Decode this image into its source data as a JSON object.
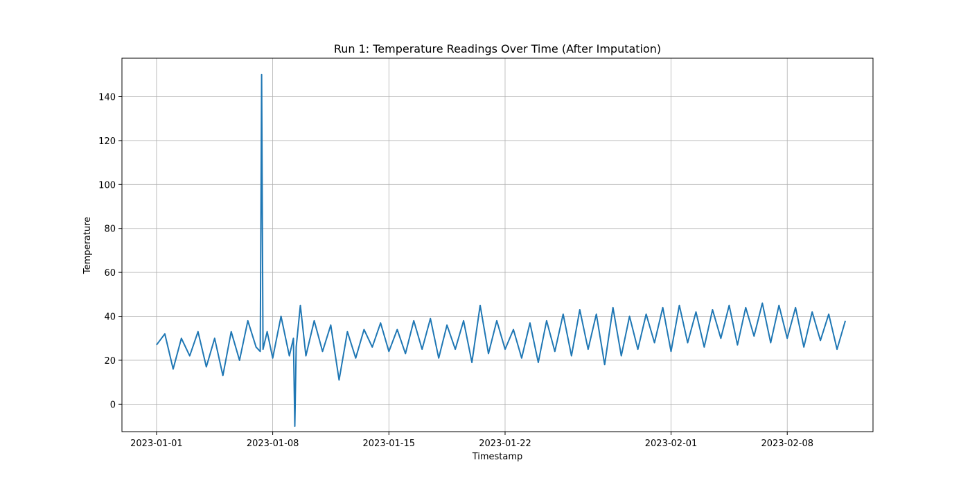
{
  "chart_data": {
    "type": "line",
    "title": "Run 1: Temperature Readings Over Time (After Imputation)",
    "xlabel": "Timestamp",
    "ylabel": "Temperature",
    "xlim": [
      "2022-12-29T22:00",
      "2023-02-13T04:00"
    ],
    "ylim": [
      -12.5,
      157.5
    ],
    "xticks": [
      "2023-01-01",
      "2023-01-08",
      "2023-01-15",
      "2023-01-22",
      "2023-02-01",
      "2023-02-08"
    ],
    "yticks": [
      0,
      20,
      40,
      60,
      80,
      100,
      120,
      140
    ],
    "grid": true,
    "line_color": "#1f77b4",
    "series": [
      {
        "x": [
          "2023-01-01T00:00",
          "2023-01-01T12:00",
          "2023-01-02T00:00",
          "2023-01-02T12:00",
          "2023-01-03T00:00",
          "2023-01-03T12:00",
          "2023-01-04T00:00",
          "2023-01-04T12:00",
          "2023-01-05T00:00",
          "2023-01-05T12:00",
          "2023-01-06T00:00",
          "2023-01-06T12:00",
          "2023-01-07T00:00",
          "2023-01-07T06:00",
          "2023-01-07T08:00",
          "2023-01-07T10:00",
          "2023-01-07T16:00",
          "2023-01-08T00:00",
          "2023-01-08T12:00",
          "2023-01-09T00:00",
          "2023-01-09T06:00",
          "2023-01-09T08:00",
          "2023-01-09T10:00",
          "2023-01-09T16:00",
          "2023-01-10T00:00",
          "2023-01-10T12:00",
          "2023-01-11T00:00",
          "2023-01-11T12:00",
          "2023-01-12T00:00",
          "2023-01-12T12:00",
          "2023-01-13T00:00",
          "2023-01-13T12:00",
          "2023-01-14T00:00",
          "2023-01-14T12:00",
          "2023-01-15T00:00",
          "2023-01-15T12:00",
          "2023-01-16T00:00",
          "2023-01-16T12:00",
          "2023-01-17T00:00",
          "2023-01-17T12:00",
          "2023-01-18T00:00",
          "2023-01-18T12:00",
          "2023-01-19T00:00",
          "2023-01-19T12:00",
          "2023-01-20T00:00",
          "2023-01-20T12:00",
          "2023-01-21T00:00",
          "2023-01-21T12:00",
          "2023-01-22T00:00",
          "2023-01-22T12:00",
          "2023-01-23T00:00",
          "2023-01-23T12:00",
          "2023-01-24T00:00",
          "2023-01-24T12:00",
          "2023-01-25T00:00",
          "2023-01-25T12:00",
          "2023-01-26T00:00",
          "2023-01-26T12:00",
          "2023-01-27T00:00",
          "2023-01-27T12:00",
          "2023-01-28T00:00",
          "2023-01-28T12:00",
          "2023-01-29T00:00",
          "2023-01-29T12:00",
          "2023-01-30T00:00",
          "2023-01-30T12:00",
          "2023-01-31T00:00",
          "2023-01-31T12:00",
          "2023-02-01T00:00",
          "2023-02-01T12:00",
          "2023-02-02T00:00",
          "2023-02-02T12:00",
          "2023-02-03T00:00",
          "2023-02-03T12:00",
          "2023-02-04T00:00",
          "2023-02-04T12:00",
          "2023-02-05T00:00",
          "2023-02-05T12:00",
          "2023-02-06T00:00",
          "2023-02-06T12:00",
          "2023-02-07T00:00",
          "2023-02-07T12:00",
          "2023-02-08T00:00",
          "2023-02-08T12:00",
          "2023-02-09T00:00",
          "2023-02-09T12:00",
          "2023-02-10T00:00",
          "2023-02-10T12:00",
          "2023-02-11T00:00",
          "2023-02-11T12:00"
        ],
        "y": [
          27,
          32,
          16,
          30,
          22,
          33,
          17,
          30,
          13,
          33,
          20,
          38,
          26,
          24,
          150,
          25,
          33,
          21,
          40,
          22,
          30,
          -10,
          26,
          45,
          22,
          38,
          24,
          36,
          11,
          33,
          21,
          34,
          26,
          37,
          24,
          34,
          23,
          38,
          25,
          39,
          21,
          36,
          25,
          38,
          19,
          45,
          23,
          38,
          25,
          34,
          21,
          37,
          19,
          38,
          24,
          41,
          22,
          43,
          25,
          41,
          18,
          44,
          22,
          40,
          25,
          41,
          28,
          44,
          24,
          45,
          28,
          42,
          26,
          43,
          30,
          45,
          27,
          44,
          31,
          46,
          28,
          45,
          30,
          44,
          26,
          42,
          29,
          41,
          25,
          38
        ]
      }
    ]
  }
}
